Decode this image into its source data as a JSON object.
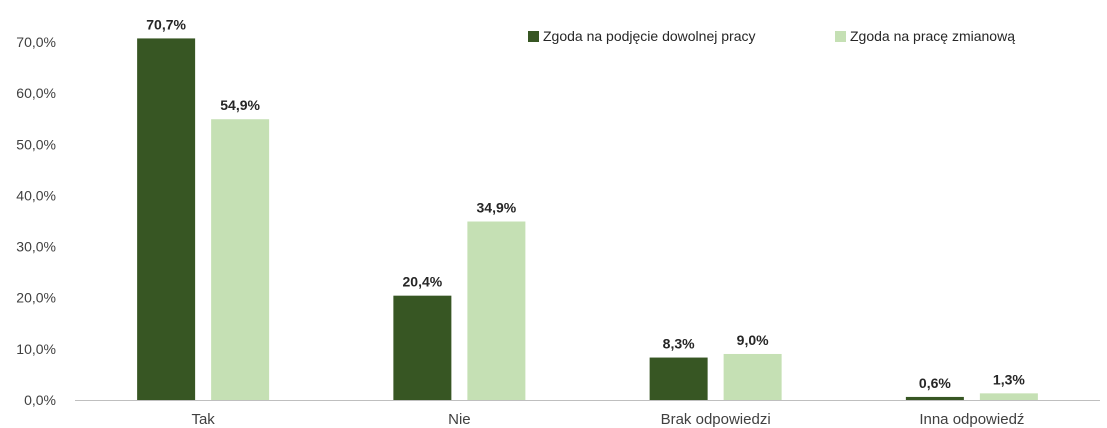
{
  "chart_data": {
    "type": "bar",
    "title": "",
    "xlabel": "",
    "ylabel": "",
    "ylim": [
      0,
      70
    ],
    "yticks": [
      "0,0%",
      "10,0%",
      "20,0%",
      "30,0%",
      "40,0%",
      "50,0%",
      "60,0%",
      "70,0%"
    ],
    "yticks_values": [
      0,
      10,
      20,
      30,
      40,
      50,
      60,
      70
    ],
    "grid": false,
    "legend_position": "top-right",
    "categories": [
      "Tak",
      "Nie",
      "Brak odpowiedzi",
      "Inna odpowiedź"
    ],
    "series": [
      {
        "name": "Zgoda na podjęcie dowolnej pracy",
        "color": "#375623",
        "values": [
          70.7,
          20.4,
          8.3,
          0.6
        ],
        "labels": [
          "70,7%",
          "20,4%",
          "8,3%",
          "0,6%"
        ]
      },
      {
        "name": "Zgoda na pracę zmianową",
        "color": "#c5e0b4",
        "values": [
          54.9,
          34.9,
          9.0,
          1.3
        ],
        "labels": [
          "54,9%",
          "34,9%",
          "9,0%",
          "1,3%"
        ]
      }
    ]
  }
}
